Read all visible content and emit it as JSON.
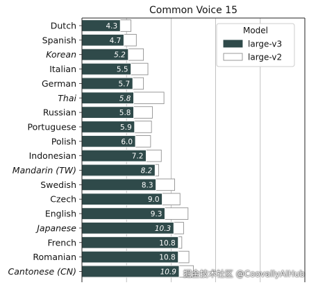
{
  "chart_data": {
    "type": "bar",
    "orientation": "horizontal",
    "title": "Common Voice 15",
    "xlabel": "",
    "ylabel": "",
    "xlim": [
      0,
      25
    ],
    "grid": "vertical",
    "legend": {
      "title": "Model",
      "placement": "top-right"
    },
    "categories": [
      "Dutch",
      "Spanish",
      "Korean",
      "Italian",
      "German",
      "Thai",
      "Russian",
      "Portuguese",
      "Polish",
      "Indonesian",
      "Mandarin (TW)",
      "Swedish",
      "Czech",
      "English",
      "Japanese",
      "French",
      "Romanian",
      "Cantonese (CN)"
    ],
    "italic_categories": [
      "Korean",
      "Thai",
      "Mandarin (TW)",
      "Japanese",
      "Cantonese (CN)"
    ],
    "series": [
      {
        "name": "large-v3",
        "color": "#2f4a4a",
        "values": [
          4.3,
          4.7,
          5.2,
          5.5,
          5.7,
          5.8,
          5.8,
          5.9,
          6.0,
          7.2,
          8.2,
          8.3,
          9.0,
          9.3,
          10.3,
          10.8,
          10.8,
          10.9
        ]
      },
      {
        "name": "large-v2",
        "color": "#ffffff",
        "values": [
          5.5,
          6.1,
          6.9,
          7.4,
          6.9,
          9.2,
          7.9,
          7.8,
          7.7,
          8.9,
          8.6,
          10.4,
          11.0,
          11.9,
          11.4,
          11.2,
          12.0,
          12.5
        ]
      }
    ]
  },
  "watermark": "掘金技术社区 @CoovallyAIHub"
}
